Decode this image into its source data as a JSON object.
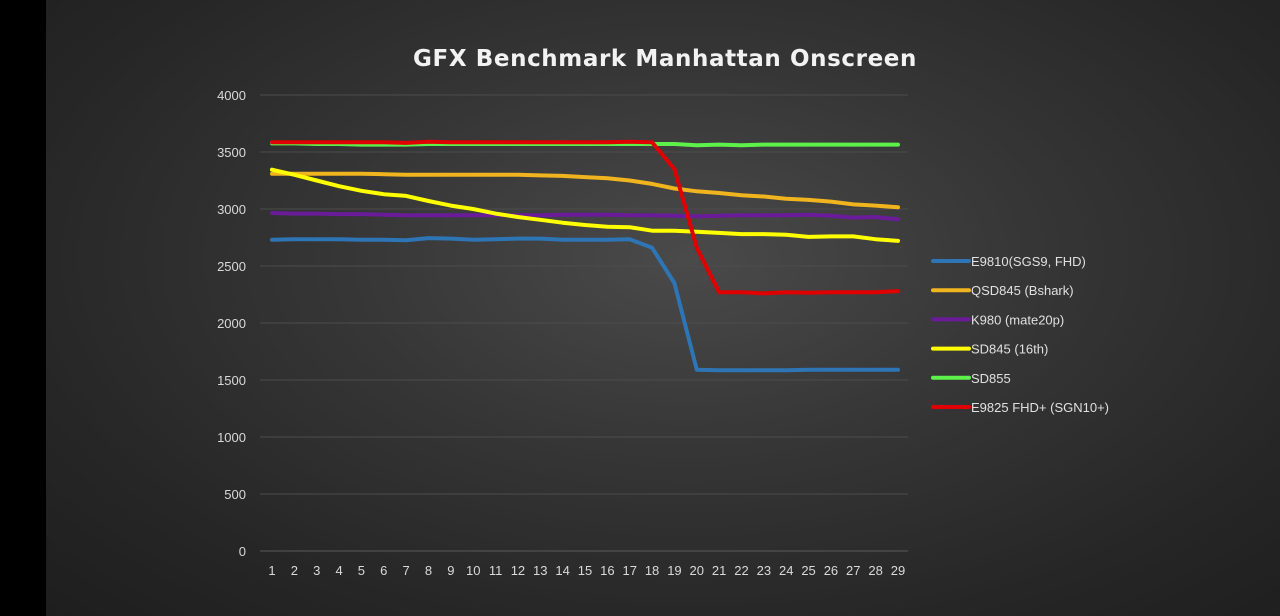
{
  "chart_data": {
    "type": "line",
    "title": "GFX Benchmark Manhattan Onscreen",
    "xlabel": "",
    "ylabel": "",
    "x": [
      1,
      2,
      3,
      4,
      5,
      6,
      7,
      8,
      9,
      10,
      11,
      12,
      13,
      14,
      15,
      16,
      17,
      18,
      19,
      20,
      21,
      22,
      23,
      24,
      25,
      26,
      27,
      28,
      29
    ],
    "ylim": [
      0,
      4000
    ],
    "yticks": [
      0,
      500,
      1000,
      1500,
      2000,
      2500,
      3000,
      3500,
      4000
    ],
    "grid": true,
    "legend_position": "right",
    "series": [
      {
        "name": "E9810(SGS9, FHD)",
        "color": "#2e75b6",
        "values": [
          2730,
          2735,
          2735,
          2735,
          2730,
          2730,
          2725,
          2745,
          2740,
          2730,
          2735,
          2740,
          2740,
          2730,
          2730,
          2730,
          2735,
          2660,
          2350,
          1590,
          1585,
          1585,
          1585,
          1585,
          1590,
          1590,
          1590,
          1590,
          1590
        ]
      },
      {
        "name": "QSD845 (Bshark)",
        "color": "#f0b41e",
        "values": [
          3310,
          3310,
          3310,
          3310,
          3310,
          3305,
          3300,
          3300,
          3300,
          3300,
          3300,
          3300,
          3295,
          3290,
          3280,
          3270,
          3250,
          3220,
          3180,
          3155,
          3140,
          3120,
          3110,
          3090,
          3080,
          3065,
          3040,
          3030,
          3015
        ]
      },
      {
        "name": "K980 (mate20p)",
        "color": "#6a1b9a",
        "values": [
          2965,
          2960,
          2960,
          2955,
          2955,
          2950,
          2945,
          2945,
          2945,
          2945,
          2945,
          2945,
          2945,
          2950,
          2950,
          2950,
          2945,
          2945,
          2940,
          2935,
          2940,
          2945,
          2945,
          2945,
          2950,
          2940,
          2925,
          2930,
          2910
        ]
      },
      {
        "name": "SD845 (16th)",
        "color": "#ffff00",
        "values": [
          3345,
          3300,
          3250,
          3200,
          3160,
          3130,
          3115,
          3070,
          3030,
          3000,
          2960,
          2930,
          2905,
          2880,
          2860,
          2845,
          2840,
          2810,
          2810,
          2800,
          2790,
          2780,
          2780,
          2775,
          2755,
          2760,
          2760,
          2735,
          2720
        ]
      },
      {
        "name": "SD855",
        "color": "#5cf24a",
        "values": [
          3575,
          3575,
          3570,
          3570,
          3565,
          3565,
          3565,
          3570,
          3570,
          3570,
          3570,
          3570,
          3570,
          3570,
          3570,
          3570,
          3570,
          3570,
          3570,
          3560,
          3565,
          3560,
          3565,
          3565,
          3565,
          3565,
          3565,
          3565,
          3565
        ]
      },
      {
        "name": "E9825 FHD+ (SGN10+)",
        "color": "#e00000",
        "values": [
          3585,
          3585,
          3585,
          3585,
          3585,
          3585,
          3580,
          3590,
          3585,
          3585,
          3585,
          3585,
          3585,
          3585,
          3585,
          3585,
          3590,
          3585,
          3350,
          2660,
          2270,
          2270,
          2260,
          2270,
          2265,
          2270,
          2270,
          2270,
          2280
        ]
      }
    ]
  }
}
